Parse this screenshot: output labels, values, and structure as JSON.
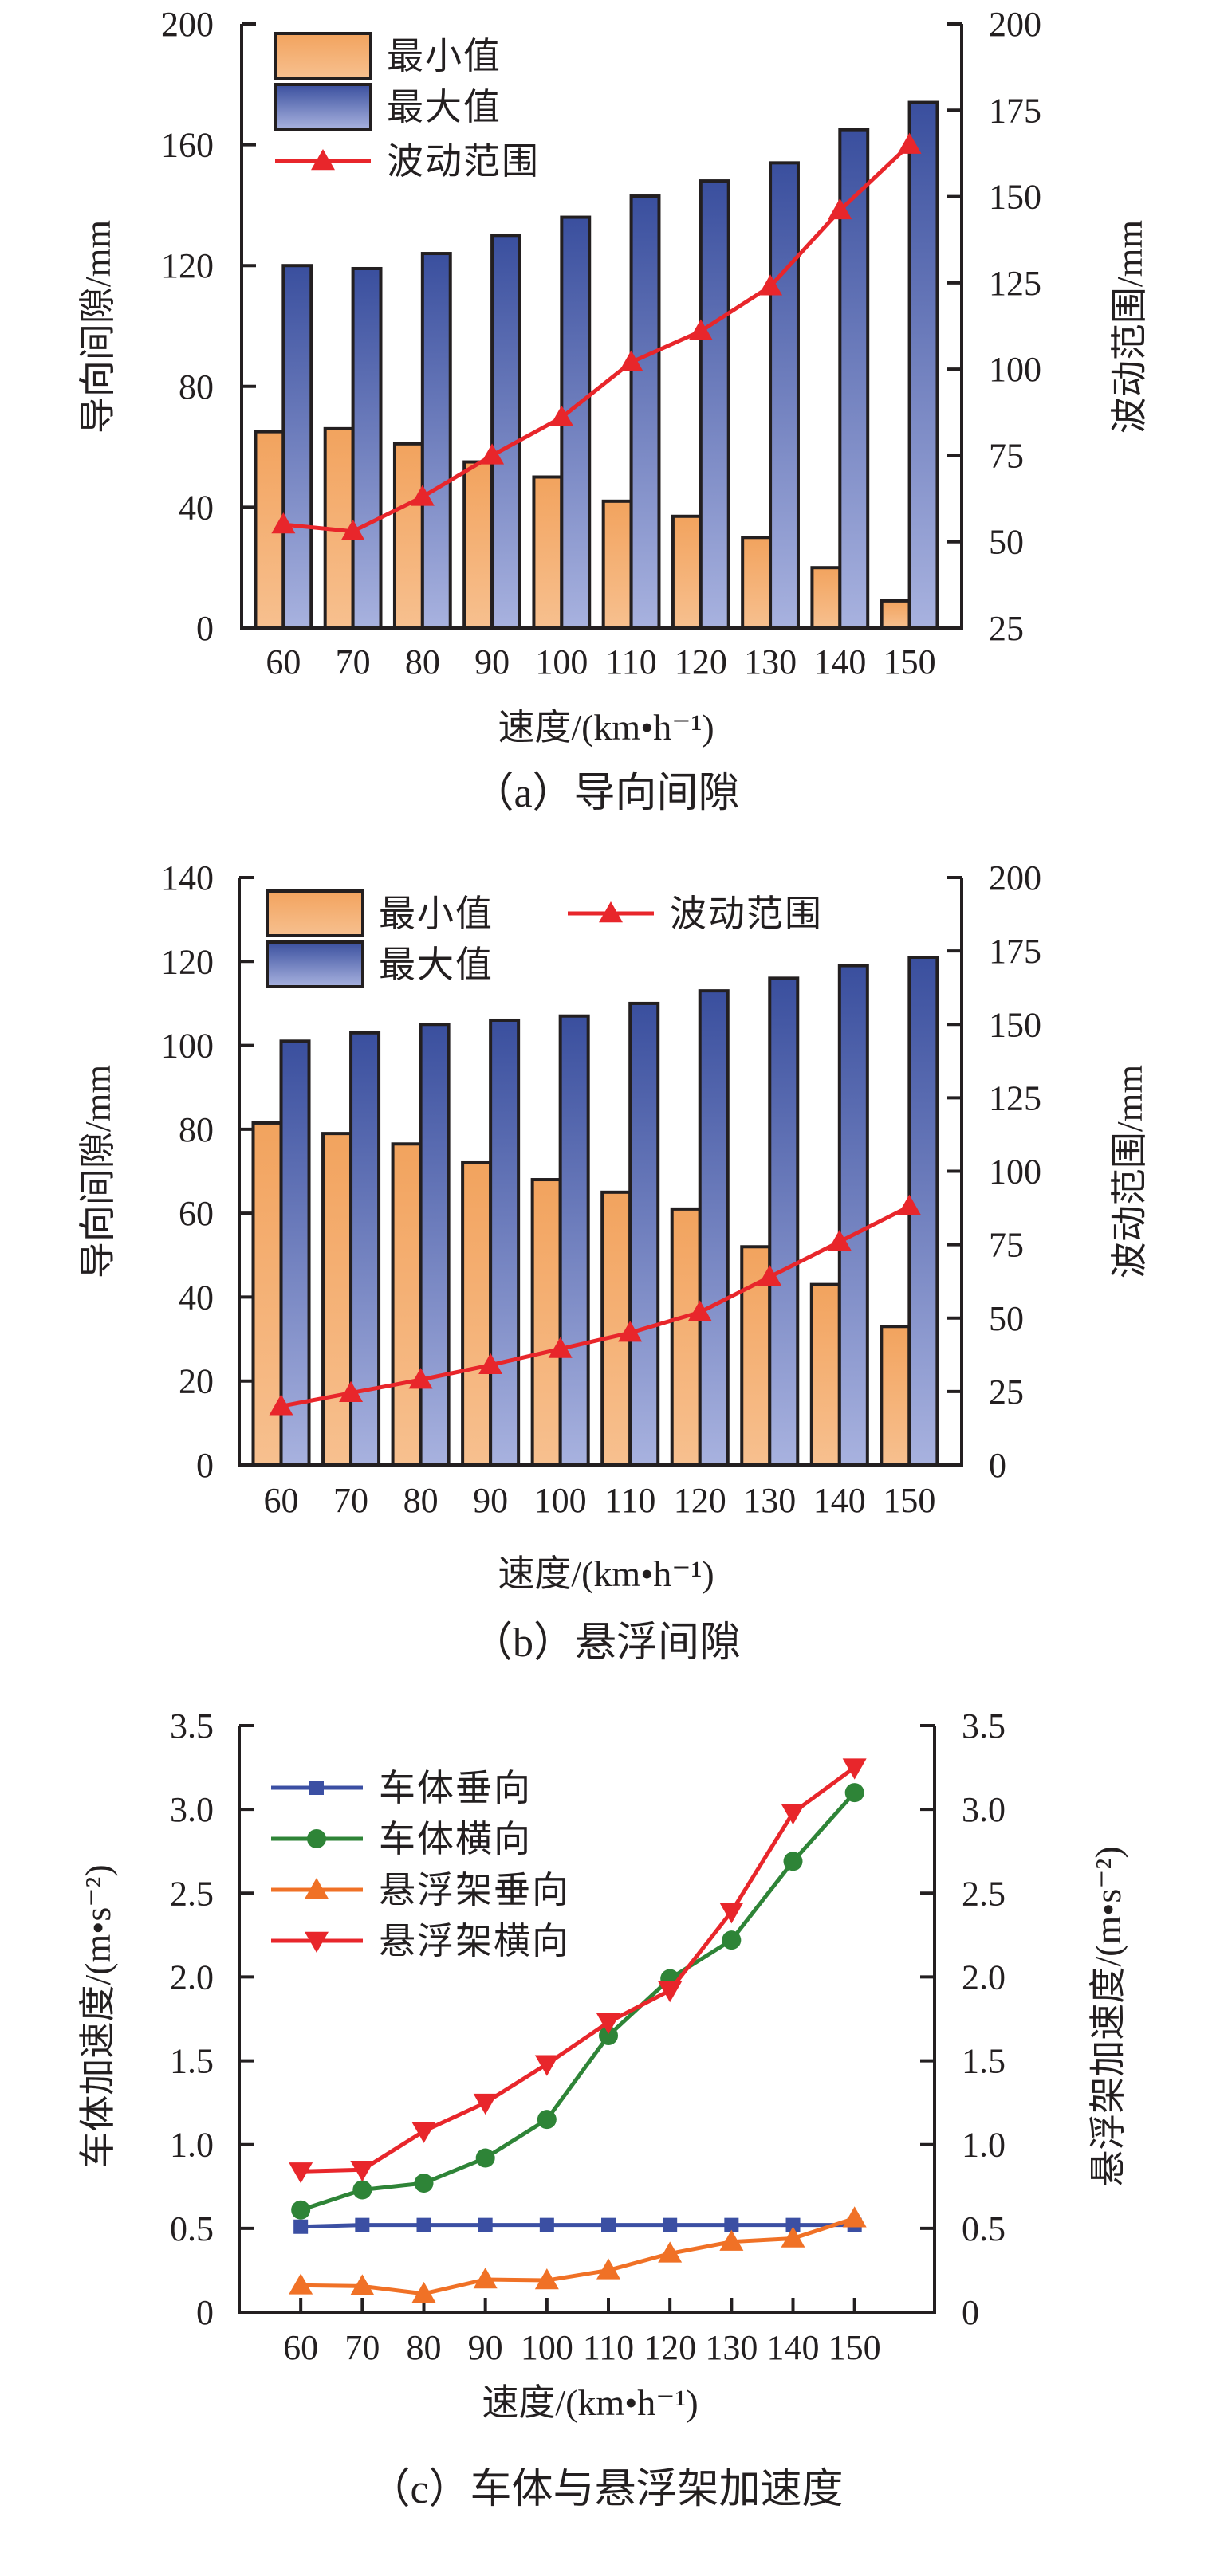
{
  "chart_data": [
    {
      "id": "a",
      "type": "bar",
      "caption": "（a）导向间隙",
      "xlabel": "速度/(km•h⁻¹)",
      "ylabel": "导向间隙/mm",
      "ylabel_right": "波动范围/mm",
      "categories": [
        "60",
        "70",
        "80",
        "90",
        "100",
        "110",
        "120",
        "130",
        "140",
        "150"
      ],
      "ylim": [
        0,
        200
      ],
      "yticks": [
        0,
        40,
        80,
        120,
        160,
        200
      ],
      "ylim_right": [
        25,
        200
      ],
      "yticks_right": [
        25,
        50,
        75,
        100,
        125,
        150,
        175,
        200
      ],
      "legend_layout": "stacked",
      "legend_position": "top-left",
      "series": [
        {
          "name": "最小值",
          "kind": "bar",
          "axis": "left",
          "color_top": "#f2a35e",
          "color_bottom": "#f7c08f",
          "values": [
            65,
            66,
            61,
            55,
            50,
            42,
            37,
            30,
            20,
            9
          ]
        },
        {
          "name": "最大值",
          "kind": "bar",
          "axis": "left",
          "color_top": "#3a4f9e",
          "color_bottom": "#a8b2df",
          "values": [
            120,
            119,
            124,
            130,
            136,
            143,
            148,
            154,
            165,
            174
          ]
        },
        {
          "name": "波动范围",
          "kind": "line",
          "marker": "triangle-up",
          "axis": "right",
          "color": "#e8262b",
          "values": [
            55,
            53,
            63,
            75,
            86,
            102,
            111,
            124,
            146,
            165
          ]
        }
      ]
    },
    {
      "id": "b",
      "type": "bar",
      "caption": "（b）悬浮间隙",
      "xlabel": "速度/(km•h⁻¹)",
      "ylabel": "导向间隙/mm",
      "ylabel_right": "波动范围/mm",
      "categories": [
        "60",
        "70",
        "80",
        "90",
        "100",
        "110",
        "120",
        "130",
        "140",
        "150"
      ],
      "ylim": [
        0,
        140
      ],
      "yticks": [
        0,
        20,
        40,
        60,
        80,
        100,
        120,
        140
      ],
      "ylim_right": [
        0,
        200
      ],
      "yticks_right": [
        0,
        25,
        50,
        75,
        100,
        125,
        150,
        175,
        200
      ],
      "legend_layout": "two-column",
      "legend_position": "top",
      "series": [
        {
          "name": "最小值",
          "kind": "bar",
          "axis": "left",
          "color_top": "#f2a35e",
          "color_bottom": "#f7c08f",
          "values": [
            81.5,
            79,
            76.5,
            72,
            68,
            65,
            61,
            52,
            43,
            33
          ]
        },
        {
          "name": "最大值",
          "kind": "bar",
          "axis": "left",
          "color_top": "#3a4f9e",
          "color_bottom": "#a8b2df",
          "values": [
            101,
            103,
            105,
            106,
            107,
            110,
            113,
            116,
            119,
            121
          ]
        },
        {
          "name": "波动范围",
          "kind": "line",
          "marker": "triangle-up",
          "axis": "right",
          "color": "#e8262b",
          "values": [
            20,
            24.5,
            29,
            34,
            39.5,
            45,
            52,
            64,
            76,
            88
          ]
        }
      ]
    },
    {
      "id": "c",
      "type": "line",
      "caption": "（c）车体与悬浮架加速度",
      "xlabel": "速度/(km•h⁻¹)",
      "ylabel": "车体加速度/(m•s⁻²)",
      "ylabel_right": "悬浮架加速度/(m•s⁻²)",
      "categories": [
        "60",
        "70",
        "80",
        "90",
        "100",
        "110",
        "120",
        "130",
        "140",
        "150"
      ],
      "ylim": [
        0,
        3.5
      ],
      "yticks": [
        0,
        0.5,
        1.0,
        1.5,
        2.0,
        2.5,
        3.0,
        3.5
      ],
      "ytick_labels": [
        "0",
        "0.5",
        "1.0",
        "1.5",
        "2.0",
        "2.5",
        "3.0",
        "3.5"
      ],
      "ylim_right": [
        0,
        3.5
      ],
      "yticks_right": [
        0,
        0.5,
        1.0,
        1.5,
        2.0,
        2.5,
        3.0,
        3.5
      ],
      "ytick_labels_right": [
        "0",
        "0.5",
        "1.0",
        "1.5",
        "2.0",
        "2.5",
        "3.0",
        "3.5"
      ],
      "legend_position": "top-left",
      "series": [
        {
          "name": "车体垂向",
          "kind": "line",
          "marker": "square",
          "axis": "left",
          "color": "#3b4fa3",
          "values": [
            0.51,
            0.52,
            0.52,
            0.52,
            0.52,
            0.52,
            0.52,
            0.52,
            0.52,
            0.52
          ]
        },
        {
          "name": "车体横向",
          "kind": "line",
          "marker": "circle",
          "axis": "left",
          "color": "#2e8437",
          "values": [
            0.61,
            0.73,
            0.77,
            0.92,
            1.15,
            1.65,
            1.99,
            2.22,
            2.69,
            3.1
          ]
        },
        {
          "name": "悬浮架垂向",
          "kind": "line",
          "marker": "triangle-up",
          "axis": "right",
          "color": "#f07126",
          "values": [
            0.16,
            0.155,
            0.11,
            0.195,
            0.19,
            0.25,
            0.35,
            0.42,
            0.44,
            0.56
          ]
        },
        {
          "name": "悬浮架横向",
          "kind": "line",
          "marker": "triangle-down",
          "axis": "right",
          "color": "#e8262b",
          "values": [
            0.84,
            0.85,
            1.08,
            1.25,
            1.48,
            1.73,
            1.92,
            2.39,
            2.98,
            3.25
          ]
        }
      ]
    }
  ]
}
